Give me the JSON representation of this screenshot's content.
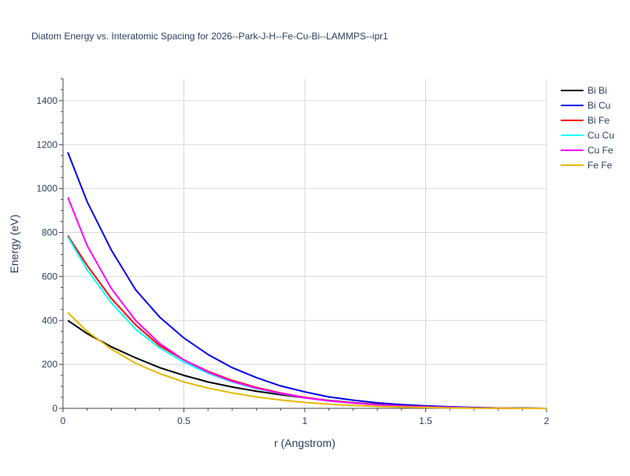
{
  "chart_data": {
    "type": "line",
    "title": "Diatom Energy vs. Interatomic Spacing for 2026--Park-J-H--Fe-Cu-Bi--LAMMPS--ipr1",
    "xlabel": "r (Angstrom)",
    "ylabel": "Energy (eV)",
    "xlim": [
      0,
      2
    ],
    "ylim": [
      0,
      1500
    ],
    "xticks": [
      0,
      0.5,
      1,
      1.5,
      2
    ],
    "xtick_labels": [
      "0",
      "0.5",
      "1",
      "1.5",
      "2"
    ],
    "yticks": [
      0,
      200,
      400,
      600,
      800,
      1000,
      1200,
      1400
    ],
    "ytick_labels": [
      "0",
      "200",
      "400",
      "600",
      "800",
      "1000",
      "1200",
      "1400"
    ],
    "grid": true,
    "legend_position": "top-right",
    "series": [
      {
        "name": "Bi Bi",
        "color": "#000000",
        "x": [
          0.02,
          0.1,
          0.2,
          0.3,
          0.4,
          0.5,
          0.6,
          0.7,
          0.8,
          0.9,
          1.0,
          1.1,
          1.2,
          1.3,
          1.4,
          1.5,
          1.6,
          1.7,
          1.8,
          1.9,
          2.0
        ],
        "y": [
          400,
          340,
          280,
          230,
          185,
          150,
          120,
          97,
          78,
          62,
          48,
          36,
          26,
          18,
          12,
          8,
          5,
          3,
          2,
          1,
          0
        ]
      },
      {
        "name": "Bi Cu",
        "color": "#0000ee",
        "x": [
          0.02,
          0.1,
          0.2,
          0.3,
          0.4,
          0.5,
          0.6,
          0.7,
          0.8,
          0.9,
          1.0,
          1.1,
          1.2,
          1.3,
          1.4,
          1.5,
          1.6,
          1.7,
          1.8,
          1.9,
          2.0
        ],
        "y": [
          1165,
          940,
          720,
          540,
          415,
          320,
          245,
          185,
          140,
          102,
          75,
          52,
          37,
          25,
          17,
          11,
          7,
          4,
          2,
          1,
          0
        ]
      },
      {
        "name": "Bi Fe",
        "color": "#ff0000",
        "x": [
          0.02,
          0.1,
          0.2,
          0.3,
          0.4,
          0.5,
          0.6,
          0.7,
          0.8,
          0.9,
          1.0,
          1.1,
          1.2,
          1.3,
          1.4,
          1.5,
          1.6,
          1.7,
          1.8,
          1.9,
          2.0
        ],
        "y": [
          785,
          650,
          500,
          380,
          285,
          220,
          168,
          127,
          95,
          70,
          50,
          35,
          25,
          17,
          11,
          7,
          4,
          2,
          1,
          0,
          0
        ]
      },
      {
        "name": "Cu Cu",
        "color": "#00ffff",
        "x": [
          0.02,
          0.1,
          0.2,
          0.3,
          0.4,
          0.5,
          0.6,
          0.7,
          0.8,
          0.9,
          1.0,
          1.1,
          1.2,
          1.3,
          1.4,
          1.5,
          1.6,
          1.7,
          1.8,
          1.9,
          2.0
        ],
        "y": [
          780,
          630,
          480,
          360,
          275,
          210,
          160,
          120,
          90,
          67,
          48,
          34,
          24,
          16,
          10,
          6,
          4,
          2,
          1,
          0,
          0
        ]
      },
      {
        "name": "Cu Fe",
        "color": "#ff00ff",
        "x": [
          0.02,
          0.1,
          0.2,
          0.3,
          0.4,
          0.5,
          0.6,
          0.7,
          0.8,
          0.9,
          1.0,
          1.1,
          1.2,
          1.3,
          1.4,
          1.5,
          1.6,
          1.7,
          1.8,
          1.9,
          2.0
        ],
        "y": [
          960,
          740,
          545,
          400,
          295,
          220,
          165,
          123,
          92,
          68,
          48,
          34,
          24,
          16,
          10,
          6,
          4,
          2,
          1,
          0,
          0
        ]
      },
      {
        "name": "Fe Fe",
        "color": "#e6b800",
        "x": [
          0.02,
          0.1,
          0.2,
          0.3,
          0.4,
          0.5,
          0.6,
          0.7,
          0.8,
          0.9,
          1.0,
          1.1,
          1.2,
          1.3,
          1.4,
          1.5,
          1.6,
          1.7,
          1.8,
          1.9,
          2.0
        ],
        "y": [
          435,
          350,
          270,
          205,
          158,
          120,
          92,
          70,
          52,
          38,
          27,
          19,
          13,
          9,
          6,
          4,
          2,
          1,
          1,
          0,
          0
        ]
      }
    ]
  }
}
